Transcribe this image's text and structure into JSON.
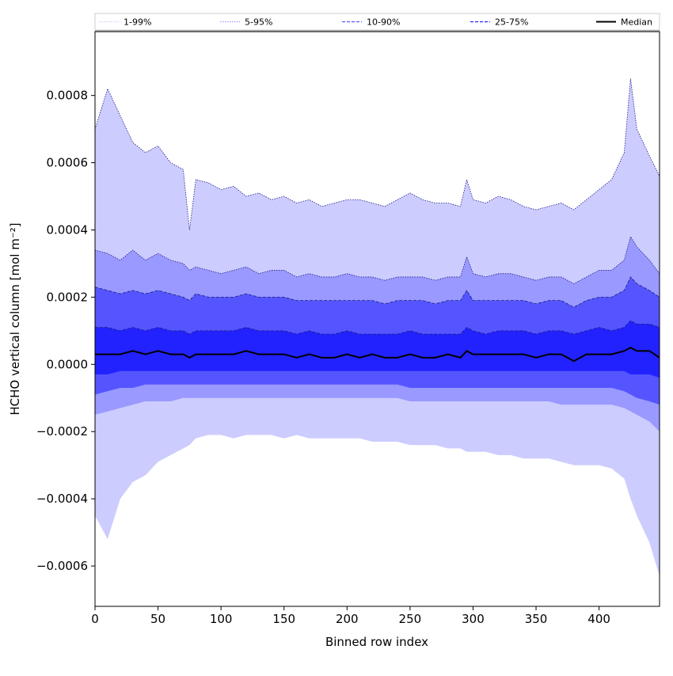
{
  "chart_data": {
    "type": "area",
    "title": "",
    "xlabel": "Binned row index",
    "ylabel": "HCHO vertical column [mol m⁻²]",
    "xlim": [
      0,
      448
    ],
    "ylim": [
      -0.00072,
      0.00099
    ],
    "x_ticks": [
      0,
      50,
      100,
      150,
      200,
      250,
      300,
      350,
      400
    ],
    "x_tick_labels": [
      "0",
      "50",
      "100",
      "150",
      "200",
      "250",
      "300",
      "350",
      "400"
    ],
    "y_ticks": [
      -0.0006,
      -0.0004,
      -0.0002,
      0.0,
      0.0002,
      0.0004,
      0.0006,
      0.0008
    ],
    "y_tick_labels": [
      "−0.0006",
      "−0.0004",
      "−0.0002",
      "0.0000",
      "0.0002",
      "0.0004",
      "0.0006",
      "0.0008"
    ],
    "grid": false,
    "legend_position": "top",
    "legend": [
      {
        "label": "1-99%",
        "color": "#ccccff",
        "style": "dotted"
      },
      {
        "label": "5-95%",
        "color": "#9999ff",
        "style": "dotted"
      },
      {
        "label": "10-90%",
        "color": "#5555ff",
        "style": "dashed"
      },
      {
        "label": "25-75%",
        "color": "#2222ff",
        "style": "dashed"
      },
      {
        "label": "Median",
        "color": "#000000",
        "style": "solid"
      }
    ],
    "x": [
      0,
      10,
      20,
      30,
      40,
      50,
      60,
      70,
      75,
      80,
      90,
      100,
      110,
      120,
      130,
      140,
      150,
      160,
      170,
      180,
      190,
      200,
      210,
      220,
      230,
      240,
      250,
      260,
      270,
      280,
      290,
      295,
      300,
      310,
      320,
      330,
      340,
      350,
      360,
      370,
      380,
      390,
      400,
      410,
      420,
      425,
      430,
      440,
      448
    ],
    "series": [
      {
        "name": "1-99%",
        "color": "#ccccff",
        "upper": [
          0.0007,
          0.00082,
          0.00074,
          0.00066,
          0.00063,
          0.00065,
          0.0006,
          0.00058,
          0.0004,
          0.00055,
          0.00054,
          0.00052,
          0.00053,
          0.0005,
          0.00051,
          0.00049,
          0.0005,
          0.00048,
          0.00049,
          0.00047,
          0.00048,
          0.00049,
          0.00049,
          0.00048,
          0.00047,
          0.00049,
          0.00051,
          0.00049,
          0.00048,
          0.00048,
          0.00047,
          0.00055,
          0.00049,
          0.00048,
          0.0005,
          0.00049,
          0.00047,
          0.00046,
          0.00047,
          0.00048,
          0.00046,
          0.00049,
          0.00052,
          0.00055,
          0.00063,
          0.00085,
          0.0007,
          0.00062,
          0.00056
        ],
        "lower": [
          -0.00045,
          -0.00052,
          -0.0004,
          -0.00035,
          -0.00033,
          -0.00029,
          -0.00027,
          -0.00025,
          -0.00024,
          -0.00022,
          -0.00021,
          -0.00021,
          -0.00022,
          -0.00021,
          -0.00021,
          -0.00021,
          -0.00022,
          -0.00021,
          -0.00022,
          -0.00022,
          -0.00022,
          -0.00022,
          -0.00022,
          -0.00023,
          -0.00023,
          -0.00023,
          -0.00024,
          -0.00024,
          -0.00024,
          -0.00025,
          -0.00025,
          -0.00026,
          -0.00026,
          -0.00026,
          -0.00027,
          -0.00027,
          -0.00028,
          -0.00028,
          -0.00028,
          -0.00029,
          -0.0003,
          -0.0003,
          -0.0003,
          -0.00031,
          -0.00034,
          -0.0004,
          -0.00045,
          -0.00053,
          -0.00063
        ]
      },
      {
        "name": "5-95%",
        "color": "#9999ff",
        "upper": [
          0.00034,
          0.00033,
          0.00031,
          0.00034,
          0.00031,
          0.00033,
          0.00031,
          0.0003,
          0.00028,
          0.00029,
          0.00028,
          0.00027,
          0.00028,
          0.00029,
          0.00027,
          0.00028,
          0.00028,
          0.00026,
          0.00027,
          0.00026,
          0.00026,
          0.00027,
          0.00026,
          0.00026,
          0.00025,
          0.00026,
          0.00026,
          0.00026,
          0.00025,
          0.00026,
          0.00026,
          0.00032,
          0.00027,
          0.00026,
          0.00027,
          0.00027,
          0.00026,
          0.00025,
          0.00026,
          0.00026,
          0.00024,
          0.00026,
          0.00028,
          0.00028,
          0.00031,
          0.00038,
          0.00035,
          0.00031,
          0.00027
        ],
        "lower": [
          -0.00015,
          -0.00014,
          -0.00013,
          -0.00012,
          -0.00011,
          -0.00011,
          -0.00011,
          -0.0001,
          -0.0001,
          -0.0001,
          -0.0001,
          -0.0001,
          -0.0001,
          -0.0001,
          -0.0001,
          -0.0001,
          -0.0001,
          -0.0001,
          -0.0001,
          -0.0001,
          -0.0001,
          -0.0001,
          -0.0001,
          -0.0001,
          -0.0001,
          -0.0001,
          -0.00011,
          -0.00011,
          -0.00011,
          -0.00011,
          -0.00011,
          -0.00011,
          -0.00011,
          -0.00011,
          -0.00011,
          -0.00011,
          -0.00011,
          -0.00011,
          -0.00011,
          -0.00012,
          -0.00012,
          -0.00012,
          -0.00012,
          -0.00012,
          -0.00013,
          -0.00014,
          -0.00015,
          -0.00017,
          -0.0002
        ]
      },
      {
        "name": "10-90%",
        "color": "#5555ff",
        "upper": [
          0.00023,
          0.00022,
          0.00021,
          0.00022,
          0.00021,
          0.00022,
          0.00021,
          0.0002,
          0.00019,
          0.00021,
          0.0002,
          0.0002,
          0.0002,
          0.00021,
          0.0002,
          0.0002,
          0.0002,
          0.00019,
          0.00019,
          0.00019,
          0.00019,
          0.00019,
          0.00019,
          0.00019,
          0.00018,
          0.00019,
          0.00019,
          0.00019,
          0.00018,
          0.00019,
          0.00019,
          0.00022,
          0.00019,
          0.00019,
          0.00019,
          0.00019,
          0.00019,
          0.00018,
          0.00019,
          0.00019,
          0.00017,
          0.00019,
          0.0002,
          0.0002,
          0.00022,
          0.00026,
          0.00024,
          0.00022,
          0.0002
        ],
        "lower": [
          -9e-05,
          -8e-05,
          -7e-05,
          -7e-05,
          -6e-05,
          -6e-05,
          -6e-05,
          -6e-05,
          -6e-05,
          -6e-05,
          -6e-05,
          -6e-05,
          -6e-05,
          -6e-05,
          -6e-05,
          -6e-05,
          -6e-05,
          -6e-05,
          -6e-05,
          -6e-05,
          -6e-05,
          -6e-05,
          -6e-05,
          -6e-05,
          -6e-05,
          -6e-05,
          -7e-05,
          -7e-05,
          -7e-05,
          -7e-05,
          -7e-05,
          -7e-05,
          -7e-05,
          -7e-05,
          -7e-05,
          -7e-05,
          -7e-05,
          -7e-05,
          -7e-05,
          -7e-05,
          -7e-05,
          -7e-05,
          -7e-05,
          -7e-05,
          -8e-05,
          -9e-05,
          -0.0001,
          -0.00011,
          -0.00012
        ]
      },
      {
        "name": "25-75%",
        "color": "#2222ff",
        "upper": [
          0.00011,
          0.00011,
          0.0001,
          0.00011,
          0.0001,
          0.00011,
          0.0001,
          0.0001,
          9e-05,
          0.0001,
          0.0001,
          0.0001,
          0.0001,
          0.00011,
          0.0001,
          0.0001,
          0.0001,
          9e-05,
          0.0001,
          9e-05,
          9e-05,
          0.0001,
          9e-05,
          9e-05,
          9e-05,
          9e-05,
          0.0001,
          9e-05,
          9e-05,
          9e-05,
          9e-05,
          0.00011,
          0.0001,
          9e-05,
          0.0001,
          0.0001,
          0.0001,
          9e-05,
          0.0001,
          0.0001,
          9e-05,
          0.0001,
          0.00011,
          0.0001,
          0.00011,
          0.00013,
          0.00012,
          0.00012,
          0.00011
        ],
        "lower": [
          -3e-05,
          -3e-05,
          -2e-05,
          -2e-05,
          -2e-05,
          -2e-05,
          -2e-05,
          -2e-05,
          -2e-05,
          -2e-05,
          -2e-05,
          -2e-05,
          -2e-05,
          -2e-05,
          -2e-05,
          -2e-05,
          -2e-05,
          -2e-05,
          -2e-05,
          -2e-05,
          -2e-05,
          -2e-05,
          -2e-05,
          -2e-05,
          -2e-05,
          -2e-05,
          -2e-05,
          -2e-05,
          -2e-05,
          -2e-05,
          -2e-05,
          -2e-05,
          -2e-05,
          -2e-05,
          -2e-05,
          -2e-05,
          -2e-05,
          -2e-05,
          -2e-05,
          -2e-05,
          -2e-05,
          -2e-05,
          -2e-05,
          -2e-05,
          -2e-05,
          -3e-05,
          -3e-05,
          -3e-05,
          -4e-05
        ]
      },
      {
        "name": "Median",
        "color": "#000000",
        "values": [
          3e-05,
          3e-05,
          3e-05,
          4e-05,
          3e-05,
          4e-05,
          3e-05,
          3e-05,
          2e-05,
          3e-05,
          3e-05,
          3e-05,
          3e-05,
          4e-05,
          3e-05,
          3e-05,
          3e-05,
          2e-05,
          3e-05,
          2e-05,
          2e-05,
          3e-05,
          2e-05,
          3e-05,
          2e-05,
          2e-05,
          3e-05,
          2e-05,
          2e-05,
          3e-05,
          2e-05,
          4e-05,
          3e-05,
          3e-05,
          3e-05,
          3e-05,
          3e-05,
          2e-05,
          3e-05,
          3e-05,
          1e-05,
          3e-05,
          3e-05,
          3e-05,
          4e-05,
          5e-05,
          4e-05,
          4e-05,
          2e-05
        ]
      }
    ]
  }
}
